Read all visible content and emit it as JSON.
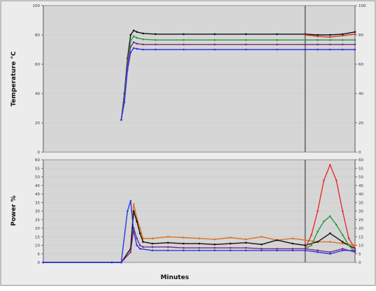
{
  "chart_data": [
    {
      "type": "line",
      "ylabel": "Temperature °C",
      "xlabel": "",
      "xlim": [
        0,
        100
      ],
      "ylim": [
        0,
        100
      ],
      "y_ticks": [
        0,
        20,
        40,
        60,
        80,
        100
      ],
      "x_ticks": [],
      "grid": true,
      "right_axis": true,
      "divider_x": 84,
      "series": [
        {
          "color": "#111111",
          "x": [
            25,
            26,
            27,
            28,
            29,
            30,
            32,
            36,
            45,
            55,
            65,
            75,
            84,
            88,
            92,
            96,
            100
          ],
          "values": [
            22,
            40,
            64,
            80,
            83,
            82,
            81,
            80.5,
            80.5,
            80.5,
            80.5,
            80.5,
            80.5,
            80,
            80,
            80.5,
            82
          ]
        },
        {
          "color": "#2a9a3a",
          "x": [
            25,
            26,
            27,
            28,
            29,
            30,
            32,
            36,
            45,
            55,
            65,
            75,
            84,
            88,
            92,
            96,
            100
          ],
          "values": [
            22,
            38,
            62,
            76,
            79,
            78,
            77,
            76.5,
            76.5,
            76.5,
            76.5,
            76.5,
            76.5,
            76.5,
            76.5,
            76.5,
            76.5
          ]
        },
        {
          "color": "#7a2a8a",
          "x": [
            25,
            26,
            27,
            28,
            29,
            30,
            32,
            36,
            45,
            55,
            65,
            75,
            84,
            88,
            92,
            96,
            100
          ],
          "values": [
            22,
            36,
            60,
            72,
            75,
            74,
            73.5,
            73.5,
            73.5,
            73.5,
            73.5,
            73.5,
            73.5,
            73.5,
            73.5,
            73.5,
            73.5
          ]
        },
        {
          "color": "#2a3ae0",
          "x": [
            25,
            26,
            27,
            28,
            29,
            30,
            32,
            36,
            45,
            55,
            65,
            75,
            84,
            88,
            92,
            96,
            100
          ],
          "values": [
            22,
            34,
            56,
            68,
            71,
            70.5,
            70,
            70,
            70,
            70,
            70,
            70,
            70,
            70,
            70,
            70,
            70
          ]
        },
        {
          "color": "#e03030",
          "x": [
            84,
            88,
            92,
            96,
            100
          ],
          "values": [
            80,
            79,
            78.5,
            79.5,
            80.5
          ]
        }
      ]
    },
    {
      "type": "line",
      "ylabel": "Power %",
      "xlabel": "Minutes",
      "xlim": [
        0,
        100
      ],
      "ylim": [
        0,
        60
      ],
      "y_ticks": [
        0,
        5,
        10,
        15,
        20,
        25,
        30,
        35,
        40,
        45,
        50,
        55,
        60
      ],
      "x_ticks": [],
      "grid": true,
      "right_axis": true,
      "divider_x": 84,
      "series": [
        {
          "color": "#e07020",
          "x": [
            0,
            22,
            25,
            28,
            29,
            30,
            31,
            32,
            35,
            40,
            45,
            50,
            55,
            60,
            65,
            70,
            75,
            80,
            84,
            88,
            92,
            96,
            100
          ],
          "values": [
            0,
            0,
            0,
            8,
            34,
            26,
            20,
            14,
            14,
            15,
            14.5,
            14,
            13.5,
            14.5,
            13.5,
            15,
            13,
            14,
            13,
            12,
            12,
            11,
            10
          ]
        },
        {
          "color": "#111111",
          "x": [
            0,
            22,
            25,
            28,
            29,
            30,
            31,
            32,
            35,
            40,
            45,
            50,
            55,
            60,
            65,
            70,
            75,
            80,
            84,
            88,
            92,
            96,
            100
          ],
          "values": [
            0,
            0,
            0,
            8,
            30,
            24,
            17,
            12,
            11,
            11.5,
            11,
            11,
            10.5,
            11,
            11.5,
            10.5,
            13,
            11,
            10,
            12,
            17,
            12,
            8
          ]
        },
        {
          "color": "#e03030",
          "x": [
            84,
            86,
            88,
            90,
            92,
            94,
            96,
            98,
            100
          ],
          "values": [
            8,
            16,
            30,
            48,
            57,
            48,
            30,
            14,
            8
          ]
        },
        {
          "color": "#2a9a3a",
          "x": [
            84,
            86,
            88,
            90,
            92,
            94,
            96,
            98,
            100
          ],
          "values": [
            8,
            10,
            18,
            24,
            27,
            22,
            16,
            10,
            6
          ]
        },
        {
          "color": "#7a2a8a",
          "x": [
            0,
            22,
            25,
            28,
            29,
            30,
            31,
            32,
            35,
            40,
            45,
            50,
            55,
            60,
            65,
            70,
            75,
            80,
            84,
            88,
            92,
            96,
            100
          ],
          "values": [
            0,
            0,
            0,
            6,
            20,
            14,
            10,
            9,
            9,
            9,
            8.5,
            8.5,
            8.5,
            8.5,
            8.5,
            8,
            8,
            8,
            8,
            7,
            6,
            8,
            6
          ]
        },
        {
          "color": "#2a3ae0",
          "x": [
            0,
            22,
            25,
            27,
            28,
            29,
            30,
            31,
            35,
            40,
            45,
            50,
            55,
            60,
            65,
            70,
            75,
            80,
            84,
            88,
            92,
            96,
            100
          ],
          "values": [
            0,
            0,
            0,
            30,
            36,
            18,
            10,
            8,
            7,
            7,
            7,
            7,
            7,
            7,
            7,
            7,
            7,
            7,
            7,
            6,
            5,
            7,
            7
          ]
        }
      ]
    }
  ]
}
